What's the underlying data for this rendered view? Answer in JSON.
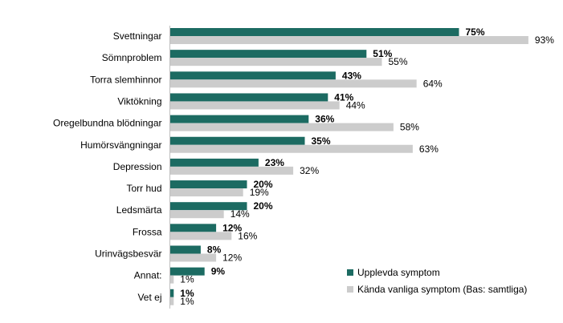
{
  "chart_data": {
    "type": "bar",
    "orientation": "horizontal",
    "categories": [
      "Svettningar",
      "Sömnproblem",
      "Torra slemhinnor",
      "Viktökning",
      "Oregelbundna blödningar",
      "Humörsvängningar",
      "Depression",
      "Torr hud",
      "Ledsmärta",
      "Frossa",
      "Urinvägsbesvär",
      "Annat:",
      "Vet ej"
    ],
    "series": [
      {
        "name": "Upplevda symptom",
        "values": [
          75,
          51,
          43,
          41,
          36,
          35,
          23,
          20,
          20,
          12,
          8,
          9,
          1
        ],
        "labels": [
          "75%",
          "51%",
          "43%",
          "41%",
          "36%",
          "35%",
          "23%",
          "20%",
          "20%",
          "12%",
          "8%",
          "9%",
          "1%"
        ],
        "color": "#1c6b62"
      },
      {
        "name": "Kända vanliga symptom (Bas: samtliga)",
        "values": [
          93,
          55,
          64,
          44,
          58,
          63,
          32,
          19,
          14,
          16,
          12,
          1,
          1
        ],
        "labels": [
          "93%",
          "55%",
          "64%",
          "44%",
          "58%",
          "63%",
          "32%",
          "19%",
          "14%",
          "16%",
          "12%",
          "1%",
          "1%"
        ],
        "color": "#cccccc"
      }
    ],
    "xlim": [
      0,
      100
    ],
    "grid": false,
    "legend_position": "bottom-right"
  }
}
